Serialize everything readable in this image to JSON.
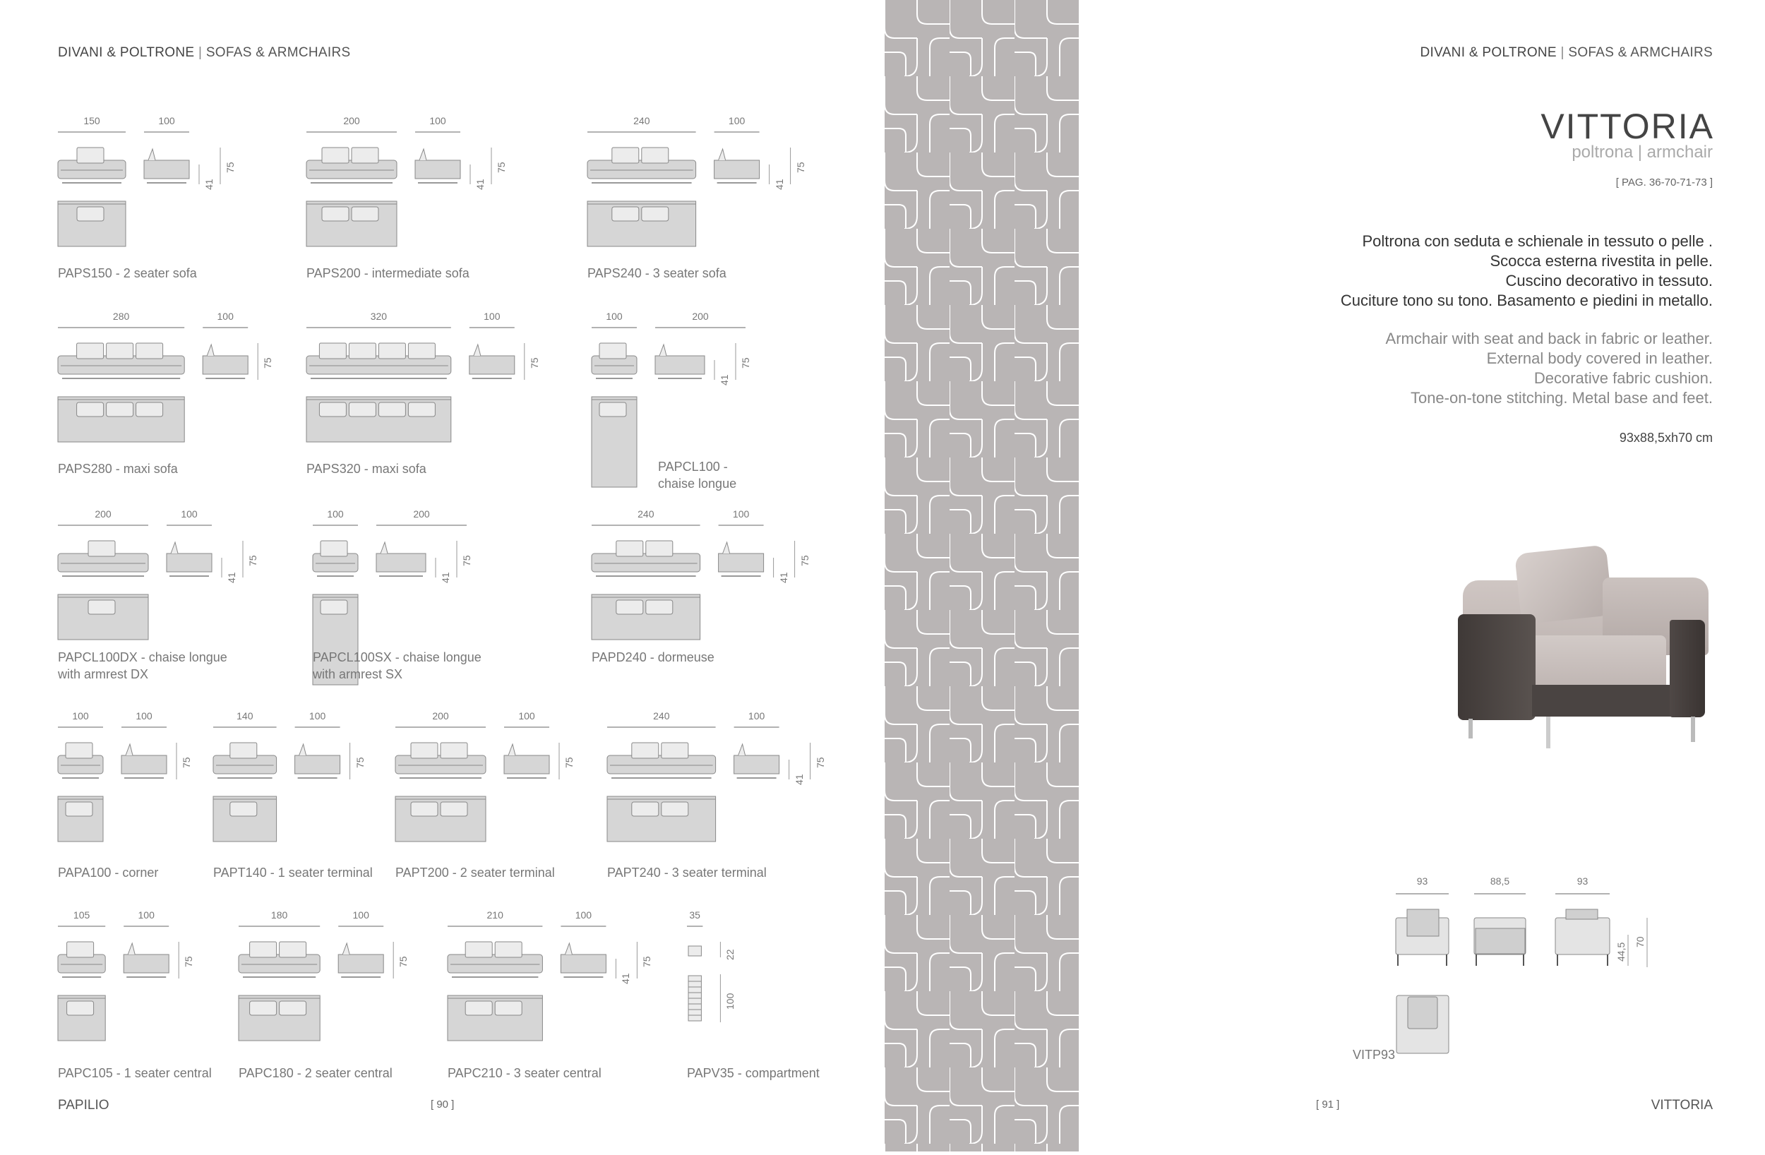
{
  "left_page": {
    "header": {
      "it": "DIVANI & POLTRONE",
      "en": "SOFAS & ARMCHAIRS"
    },
    "footer_name": "PAPILIO",
    "page_number": "[ 90 ]",
    "products": [
      {
        "label": [
          "PAPS150 - 2 seater sofa"
        ],
        "dims": [
          "150",
          "100"
        ],
        "heights": [
          "41",
          "75"
        ],
        "seats": 1
      },
      {
        "label": [
          "PAPS200 - intermediate sofa"
        ],
        "dims": [
          "200",
          "100"
        ],
        "heights": [
          "41",
          "75"
        ],
        "seats": 2
      },
      {
        "label": [
          "PAPS240 - 3 seater sofa"
        ],
        "dims": [
          "240",
          "100"
        ],
        "heights": [
          "41",
          "75"
        ],
        "seats": 2
      },
      {
        "label": [
          "PAPS280 - maxi sofa"
        ],
        "dims": [
          "280",
          "100"
        ],
        "heights": [
          "75"
        ],
        "seats": 3
      },
      {
        "label": [
          "PAPS320 - maxi sofa"
        ],
        "dims": [
          "320",
          "100"
        ],
        "heights": [
          "75"
        ],
        "seats": 4
      },
      {
        "label": [
          "PAPCL100 -",
          "chaise longue"
        ],
        "dims": [
          "100",
          "200"
        ],
        "heights": [
          "41",
          "75"
        ],
        "seats": 1
      },
      {
        "label": [
          "PAPCL100DX - chaise longue",
          "with armrest DX"
        ],
        "dims": [
          "200",
          "100"
        ],
        "heights": [
          "41",
          "75"
        ],
        "seats": 1
      },
      {
        "label": [
          "PAPCL100SX - chaise longue",
          "with armrest SX"
        ],
        "dims": [
          "100",
          "200"
        ],
        "heights": [
          "41",
          "75"
        ],
        "seats": 1
      },
      {
        "label": [
          "PAPD240 - dormeuse"
        ],
        "dims": [
          "240",
          "100"
        ],
        "heights": [
          "41",
          "75"
        ],
        "seats": 2
      },
      {
        "label": [
          "PAPA100 - corner"
        ],
        "dims": [
          "100",
          "100"
        ],
        "heights": [
          "75"
        ],
        "seats": 1
      },
      {
        "label": [
          "PAPT140 - 1 seater terminal"
        ],
        "dims": [
          "140",
          "100"
        ],
        "heights": [
          "75"
        ],
        "seats": 1
      },
      {
        "label": [
          "PAPT200 - 2 seater terminal"
        ],
        "dims": [
          "200",
          "100"
        ],
        "heights": [
          "75"
        ],
        "seats": 2
      },
      {
        "label": [
          "PAPT240 - 3 seater terminal"
        ],
        "dims": [
          "240",
          "100"
        ],
        "heights": [
          "41",
          "75"
        ],
        "seats": 2
      },
      {
        "label": [
          "PAPC105 - 1 seater central"
        ],
        "dims": [
          "105",
          "100"
        ],
        "heights": [
          "75"
        ],
        "seats": 1
      },
      {
        "label": [
          "PAPC180 - 2 seater central"
        ],
        "dims": [
          "180",
          "100"
        ],
        "heights": [
          "75"
        ],
        "seats": 2
      },
      {
        "label": [
          "PAPC210 - 3 seater central"
        ],
        "dims": [
          "210",
          "100"
        ],
        "heights": [
          "41",
          "75"
        ],
        "seats": 2
      },
      {
        "label": [
          "PAPV35 - compartment"
        ],
        "dims": [
          "35"
        ],
        "heights": [
          "22",
          "100"
        ],
        "seats": 0
      }
    ]
  },
  "right_page": {
    "header": {
      "it": "DIVANI & POLTRONE",
      "en": "SOFAS & ARMCHAIRS"
    },
    "title": "VITTORIA",
    "subtitle_it": "poltrona",
    "subtitle_en": "armchair",
    "page_refs": "[ PAG. 36-70-71-73 ]",
    "description_it": [
      "Poltrona con seduta e schienale in tessuto o pelle .",
      "Scocca esterna rivestita in pelle.",
      "Cuscino decorativo in tessuto.",
      "Cuciture tono su tono. Basamento e piedini in metallo."
    ],
    "description_en": [
      "Armchair with seat and back in fabric or leather.",
      "External body covered in leather.",
      "Decorative fabric cushion.",
      "Tone-on-tone stitching. Metal base and feet."
    ],
    "size": "93x88,5xh70 cm",
    "drawing": {
      "code": "VITP93",
      "dims": [
        "93",
        "88,5",
        "93"
      ],
      "heights": [
        "44,5",
        "70"
      ]
    },
    "footer_name": "VITTORIA",
    "page_number": "[ 91 ]"
  },
  "colors": {
    "pattern_bg": "#b9b5b5",
    "pattern_line": "#ffffff",
    "drawing_fill": "#d6d6d6",
    "leather": "#4a4442",
    "fabric": "#c8bfbc"
  }
}
